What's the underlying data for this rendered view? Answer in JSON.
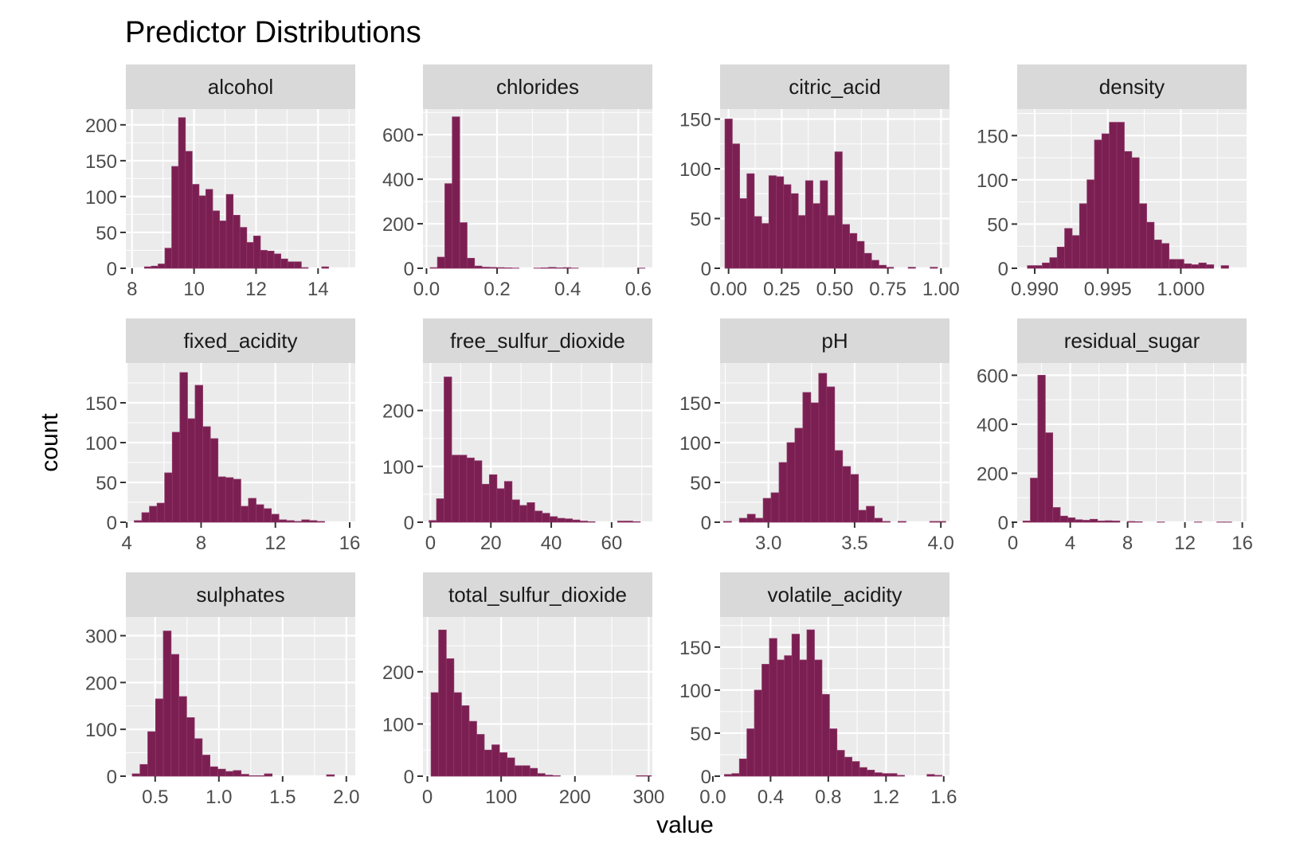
{
  "chart_data": {
    "type": "histogram-facets",
    "title": "Predictor Distributions",
    "xlabel": "value",
    "ylabel": "count",
    "bar_color": "#7b1f52",
    "panel_background": "#ebebeb",
    "strip_background": "#d9d9d9",
    "grid": true,
    "facets": [
      {
        "name": "alcohol",
        "xlim": [
          7.8,
          15.2
        ],
        "ylim": [
          0,
          222
        ],
        "xticks": [
          8,
          10,
          12,
          14
        ],
        "xtick_labels": [
          "8",
          "10",
          "12",
          "14"
        ],
        "yticks": [
          0,
          50,
          100,
          150,
          200
        ],
        "bins_start": 8.4,
        "bin_width": 0.22,
        "counts": [
          2,
          3,
          6,
          28,
          142,
          210,
          163,
          117,
          101,
          110,
          80,
          66,
          103,
          74,
          57,
          36,
          45,
          25,
          24,
          20,
          13,
          9,
          9,
          1,
          0,
          0,
          2
        ]
      },
      {
        "name": "chlorides",
        "xlim": [
          -0.01,
          0.64
        ],
        "ylim": [
          0,
          715
        ],
        "xticks": [
          0.0,
          0.2,
          0.4,
          0.6
        ],
        "xtick_labels": [
          "0.0",
          "0.2",
          "0.4",
          "0.6"
        ],
        "yticks": [
          0,
          200,
          400,
          600
        ],
        "bins_start": 0.01,
        "bin_width": 0.021,
        "counts": [
          3,
          50,
          380,
          680,
          205,
          45,
          10,
          5,
          4,
          3,
          2,
          1,
          0,
          0,
          1,
          2,
          4,
          2,
          3,
          1,
          0,
          0,
          0,
          0,
          0,
          0,
          0,
          0,
          1
        ]
      },
      {
        "name": "citric_acid",
        "xlim": [
          -0.04,
          1.04
        ],
        "ylim": [
          0,
          160
        ],
        "xticks": [
          0.0,
          0.25,
          0.5,
          0.75,
          1.0
        ],
        "xtick_labels": [
          "0.00",
          "0.25",
          "0.50",
          "0.75",
          "1.00"
        ],
        "yticks": [
          0,
          50,
          100,
          150
        ],
        "bins_start": -0.017,
        "bin_width": 0.0345,
        "counts": [
          150,
          125,
          70,
          95,
          52,
          45,
          93,
          92,
          84,
          75,
          53,
          88,
          65,
          88,
          53,
          117,
          44,
          35,
          27,
          15,
          8,
          3,
          1,
          0,
          0,
          1,
          0,
          0,
          1
        ]
      },
      {
        "name": "density",
        "xlim": [
          0.9888,
          1.0045
        ],
        "ylim": [
          0,
          180
        ],
        "xticks": [
          0.99,
          0.995,
          1.0
        ],
        "xtick_labels": [
          "0.990",
          "0.995",
          "1.000"
        ],
        "yticks": [
          0,
          50,
          100,
          150
        ],
        "bins_start": 0.9895,
        "bin_width": 0.00051,
        "counts": [
          3,
          3,
          6,
          12,
          24,
          45,
          37,
          73,
          100,
          145,
          152,
          165,
          165,
          132,
          125,
          73,
          52,
          32,
          28,
          10,
          10,
          5,
          4,
          6,
          4,
          0,
          3
        ]
      },
      {
        "name": "fixed_acidity",
        "xlim": [
          3.95,
          16.3
        ],
        "ylim": [
          0,
          200
        ],
        "xticks": [
          4,
          8,
          12,
          16
        ],
        "xtick_labels": [
          "4",
          "8",
          "12",
          "16"
        ],
        "yticks": [
          0,
          50,
          100,
          150
        ],
        "bins_start": 4.4,
        "bin_width": 0.41,
        "counts": [
          2,
          12,
          20,
          24,
          62,
          113,
          188,
          130,
          172,
          120,
          105,
          57,
          56,
          54,
          20,
          30,
          22,
          17,
          10,
          3,
          2,
          1,
          3,
          2,
          1
        ]
      },
      {
        "name": "free_sulfur_dioxide",
        "xlim": [
          -2.5,
          73.5
        ],
        "ylim": [
          0,
          285
        ],
        "xticks": [
          0,
          20,
          40,
          60
        ],
        "xtick_labels": [
          "0",
          "20",
          "40",
          "60"
        ],
        "yticks": [
          0,
          100,
          200
        ],
        "bins_start": -0.5,
        "bin_width": 2.5,
        "counts": [
          3,
          42,
          260,
          120,
          120,
          115,
          110,
          68,
          85,
          60,
          73,
          40,
          30,
          35,
          20,
          16,
          10,
          7,
          6,
          4,
          2,
          1,
          0,
          0,
          0,
          2,
          2,
          1
        ]
      },
      {
        "name": "pH",
        "xlim": [
          2.72,
          4.05
        ],
        "ylim": [
          0,
          200
        ],
        "xticks": [
          3.0,
          3.5,
          4.0
        ],
        "xtick_labels": [
          "3.0",
          "3.5",
          "4.0"
        ],
        "yticks": [
          0,
          50,
          100,
          150
        ],
        "bins_start": 2.74,
        "bin_width": 0.046,
        "counts": [
          1,
          0,
          5,
          10,
          5,
          30,
          37,
          75,
          100,
          118,
          163,
          150,
          187,
          170,
          90,
          70,
          60,
          15,
          20,
          5,
          1,
          0,
          1,
          0,
          0,
          0,
          1,
          1
        ]
      },
      {
        "name": "residual_sugar",
        "xlim": [
          0.3,
          16.3
        ],
        "ylim": [
          0,
          650
        ],
        "xticks": [
          0,
          4,
          8,
          12,
          16
        ],
        "xtick_labels": [
          "0",
          "4",
          "8",
          "12",
          "16"
        ],
        "yticks": [
          0,
          200,
          400,
          600
        ],
        "bins_start": 0.7,
        "bin_width": 0.52,
        "counts": [
          5,
          180,
          600,
          365,
          60,
          25,
          18,
          10,
          8,
          12,
          5,
          6,
          5,
          0,
          3,
          2,
          0,
          0,
          1,
          0,
          0,
          0,
          0,
          1,
          0,
          0,
          1,
          1
        ]
      },
      {
        "name": "sulphates",
        "xlim": [
          0.27,
          2.07
        ],
        "ylim": [
          0,
          340
        ],
        "xticks": [
          0.5,
          1.0,
          1.5,
          2.0
        ],
        "xtick_labels": [
          "0.5",
          "1.0",
          "1.5",
          "2.0"
        ],
        "yticks": [
          0,
          100,
          200,
          300
        ],
        "bins_start": 0.32,
        "bin_width": 0.061,
        "counts": [
          5,
          25,
          95,
          165,
          310,
          260,
          170,
          125,
          80,
          45,
          20,
          15,
          10,
          12,
          4,
          1,
          1,
          5,
          0,
          0,
          0,
          0,
          0,
          0,
          0,
          3
        ]
      },
      {
        "name": "total_sulfur_dioxide",
        "xlim": [
          -6,
          305
        ],
        "ylim": [
          0,
          305
        ],
        "xticks": [
          0,
          100,
          200,
          300
        ],
        "xtick_labels": [
          "0",
          "100",
          "200",
          "300"
        ],
        "yticks": [
          0,
          100,
          200
        ],
        "bins_start": 5,
        "bin_width": 10.3,
        "counts": [
          160,
          280,
          225,
          160,
          135,
          105,
          80,
          50,
          60,
          45,
          35,
          20,
          20,
          15,
          5,
          2,
          1,
          0,
          0,
          0,
          0,
          0,
          0,
          0,
          0,
          0,
          0,
          1,
          1
        ]
      },
      {
        "name": "volatile_acidity",
        "xlim": [
          0.05,
          1.64
        ],
        "ylim": [
          0,
          185
        ],
        "xticks": [
          0.0,
          0.4,
          0.8,
          1.2,
          1.6
        ],
        "xtick_labels": [
          "0.0",
          "0.4",
          "0.8",
          "1.2",
          "1.6"
        ],
        "yticks": [
          0,
          50,
          100,
          150
        ],
        "bins_start": 0.08,
        "bin_width": 0.052,
        "counts": [
          2,
          3,
          20,
          55,
          100,
          130,
          160,
          135,
          140,
          165,
          135,
          170,
          135,
          95,
          55,
          30,
          22,
          17,
          10,
          7,
          4,
          3,
          3,
          1,
          0,
          0,
          0,
          2,
          1
        ]
      }
    ]
  }
}
